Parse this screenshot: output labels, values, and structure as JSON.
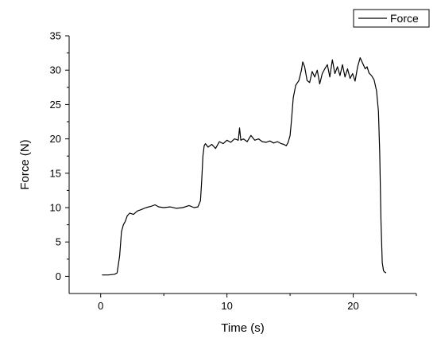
{
  "colors": {
    "background": "#ffffff",
    "axis": "#000000",
    "series": "#000000"
  },
  "chart_data": {
    "type": "line",
    "title": "",
    "xlabel": "Time (s)",
    "ylabel": "Force (N)",
    "xlim": [
      -2.5,
      25
    ],
    "ylim": [
      -2.5,
      35
    ],
    "x_ticks": [
      0,
      10,
      20
    ],
    "x_tick_labels": [
      "0",
      "10",
      "20"
    ],
    "y_ticks": [
      0,
      5,
      10,
      15,
      20,
      25,
      30,
      35
    ],
    "y_tick_labels": [
      "0",
      "5",
      "10",
      "15",
      "20",
      "25",
      "30",
      "35"
    ],
    "grid": false,
    "legend": {
      "position": "top-right",
      "entries": [
        "Force"
      ]
    },
    "series": [
      {
        "name": "Force",
        "x": [
          0.1,
          0.6,
          1.1,
          1.3,
          1.5,
          1.65,
          1.8,
          1.95,
          2.1,
          2.3,
          2.6,
          2.9,
          3.2,
          3.6,
          4.0,
          4.3,
          4.6,
          5.0,
          5.5,
          6.0,
          6.5,
          7.0,
          7.4,
          7.7,
          7.9,
          8.0,
          8.1,
          8.2,
          8.3,
          8.5,
          8.8,
          9.1,
          9.4,
          9.7,
          10.0,
          10.3,
          10.6,
          10.9,
          11.0,
          11.1,
          11.3,
          11.6,
          11.9,
          12.2,
          12.5,
          12.8,
          13.1,
          13.4,
          13.7,
          14.0,
          14.3,
          14.5,
          14.7,
          14.85,
          15.0,
          15.1,
          15.25,
          15.45,
          15.7,
          15.9,
          16.0,
          16.15,
          16.35,
          16.55,
          16.75,
          16.95,
          17.15,
          17.35,
          17.55,
          17.75,
          17.95,
          18.15,
          18.35,
          18.55,
          18.75,
          18.95,
          19.15,
          19.35,
          19.55,
          19.75,
          19.95,
          20.15,
          20.35,
          20.55,
          20.75,
          20.95,
          21.1,
          21.25,
          21.45,
          21.65,
          21.85,
          22.0,
          22.1,
          22.2,
          22.3,
          22.4,
          22.5,
          22.6
        ],
        "values": [
          0.2,
          0.2,
          0.3,
          0.5,
          3.0,
          6.5,
          7.5,
          8.0,
          8.8,
          9.2,
          9.0,
          9.5,
          9.7,
          10.0,
          10.2,
          10.4,
          10.1,
          10.0,
          10.1,
          9.9,
          10.0,
          10.3,
          10.0,
          10.1,
          11.0,
          14.0,
          17.5,
          19.0,
          19.3,
          18.8,
          19.2,
          18.6,
          19.6,
          19.3,
          19.8,
          19.5,
          20.0,
          19.8,
          21.6,
          19.8,
          20.0,
          19.6,
          20.5,
          19.8,
          20.0,
          19.6,
          19.5,
          19.7,
          19.4,
          19.6,
          19.3,
          19.2,
          19.0,
          19.5,
          20.5,
          22.5,
          26.0,
          27.8,
          28.5,
          30.0,
          31.2,
          30.5,
          28.5,
          28.2,
          29.8,
          29.0,
          30.0,
          28.0,
          29.5,
          30.2,
          30.8,
          29.0,
          31.5,
          29.5,
          30.5,
          29.2,
          30.8,
          29.0,
          30.2,
          28.8,
          29.5,
          28.4,
          30.5,
          31.8,
          31.0,
          30.2,
          30.5,
          29.6,
          29.2,
          28.6,
          27.0,
          24.0,
          18.0,
          8.0,
          2.0,
          0.8,
          0.6,
          0.5
        ]
      }
    ]
  }
}
